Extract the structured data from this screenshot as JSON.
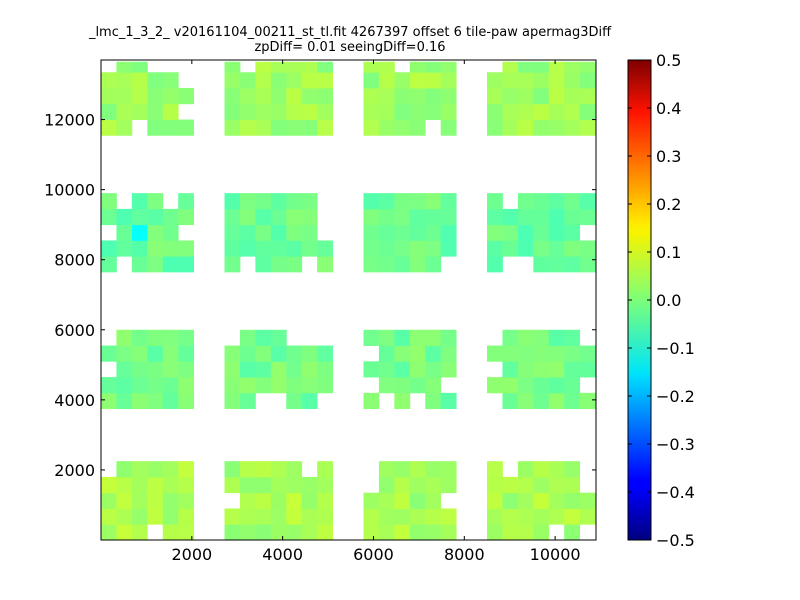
{
  "chart_data": {
    "type": "heatmap",
    "title": "_lmc_1_3_2_ v20161104_00211_st_tl.fit 4267397 offset 6 tile-paw apermag3Diff",
    "subtitle": "zpDiff= 0.01 seeingDiff=0.16",
    "xlabel": "",
    "ylabel": "",
    "xlim": [
      0,
      10900
    ],
    "ylim": [
      0,
      13700
    ],
    "xticks": [
      2000,
      4000,
      6000,
      8000,
      10000
    ],
    "yticks": [
      2000,
      4000,
      6000,
      8000,
      10000,
      12000
    ],
    "colorbar": {
      "colormap": "jet",
      "vmin": -0.5,
      "vmax": 0.5,
      "ticks": [
        -0.5,
        -0.4,
        -0.3,
        -0.2,
        -0.1,
        0.0,
        0.1,
        0.2,
        0.3,
        0.4,
        0.5
      ],
      "tick_labels": [
        "−0.5",
        "−0.4",
        "−0.3",
        "−0.2",
        "−0.1",
        "0.0",
        "0.1",
        "0.2",
        "0.3",
        "0.4",
        "0.5"
      ]
    },
    "grid": false,
    "cell_width": 340,
    "cell_height": 450,
    "column_groups": [
      [
        0,
        2040
      ],
      [
        2720,
        5100
      ],
      [
        5780,
        7820
      ],
      [
        8500,
        10880
      ]
    ],
    "row_groups": [
      [
        0,
        2250
      ],
      [
        3750,
        6000
      ],
      [
        7650,
        9900
      ],
      [
        11550,
        13650
      ]
    ],
    "typical_value": 0.0,
    "value_range_observed": [
      -0.12,
      0.07
    ],
    "notes_values": {
      "bottom_band": 0.04,
      "lower_middle_band": -0.01,
      "upper_middle_band": -0.02,
      "top_band": 0.03,
      "min_cell": {
        "x": 850,
        "y": 8600,
        "value": -0.12
      }
    }
  }
}
